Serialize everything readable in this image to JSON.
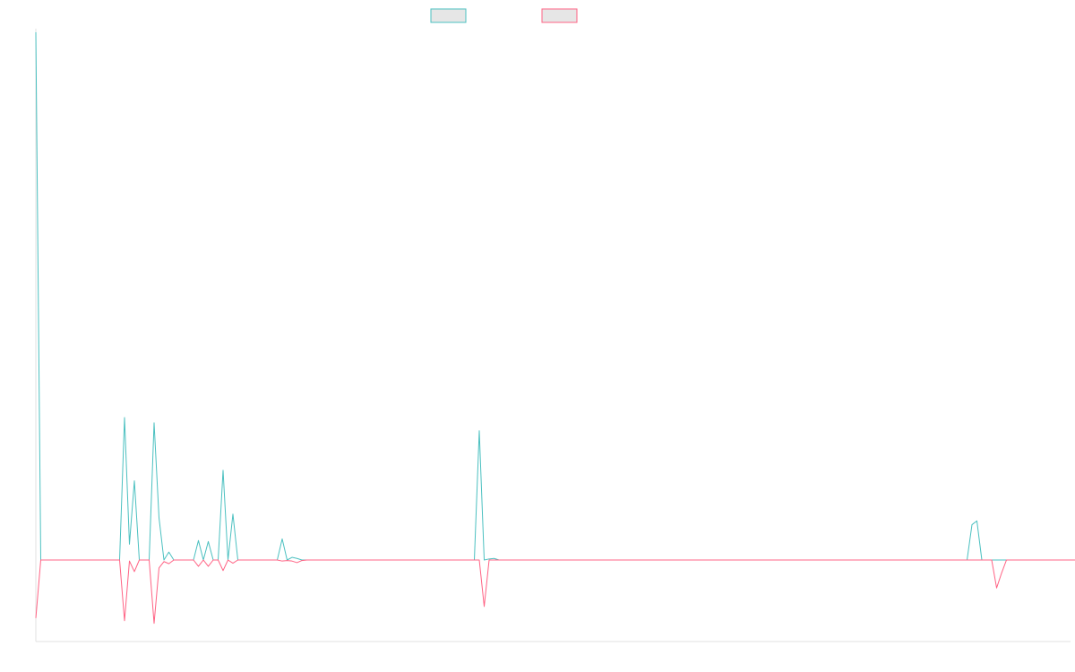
{
  "chart_data": {
    "type": "line",
    "title": "",
    "xlabel": "",
    "ylabel": "",
    "grid": false,
    "legend": {
      "placement": "top-center"
    },
    "ylim": [
      -12,
      100
    ],
    "series": [
      {
        "name": "",
        "color": "#4bc0c0",
        "legend_fill": "#e6e6e6",
        "values": [
          100,
          0,
          0,
          0,
          0,
          0,
          0,
          0,
          0,
          0,
          0,
          0,
          0,
          0,
          0,
          0,
          0,
          0,
          27,
          3,
          15,
          0,
          0,
          0,
          26,
          8,
          0,
          1.5,
          0,
          0,
          0,
          0,
          0,
          3.7,
          0,
          3.5,
          0,
          0,
          17,
          0,
          8.7,
          0,
          0,
          0,
          0,
          0,
          0,
          0,
          0,
          0,
          4,
          0,
          0.5,
          0.3,
          0,
          0,
          0,
          0,
          0,
          0,
          0,
          0,
          0,
          0,
          0,
          0,
          0,
          0,
          0,
          0,
          0,
          0,
          0,
          0,
          0,
          0,
          0,
          0,
          0,
          0,
          0,
          0,
          0,
          0,
          0,
          0,
          0,
          0,
          0,
          0,
          24.5,
          0,
          0.2,
          0.3,
          0,
          0,
          0,
          0,
          0,
          0,
          0,
          0,
          0,
          0,
          0,
          0,
          0,
          0,
          0,
          0,
          0,
          0,
          0,
          0,
          0,
          0,
          0,
          0,
          0,
          0,
          0,
          0,
          0,
          0,
          0,
          0,
          0,
          0,
          0,
          0,
          0,
          0,
          0,
          0,
          0,
          0,
          0,
          0,
          0,
          0,
          0,
          0,
          0,
          0,
          0,
          0,
          0,
          0,
          0,
          0,
          0,
          0,
          0,
          0,
          0,
          0,
          0,
          0,
          0,
          0,
          0,
          0,
          0,
          0,
          0,
          0,
          0,
          0,
          0,
          0,
          0,
          0,
          0,
          0,
          0,
          0,
          0,
          0,
          0,
          0,
          0,
          0,
          0,
          0,
          0,
          0,
          0,
          0,
          0,
          0,
          6.7,
          7.4,
          0,
          0,
          0,
          0,
          0,
          0,
          0,
          0,
          0,
          0,
          0,
          0,
          0,
          0,
          0,
          0,
          0,
          0,
          0
        ]
      },
      {
        "name": "",
        "color": "#ff6384",
        "legend_fill": "#e6e6e6",
        "values": [
          -11,
          0,
          0,
          0,
          0,
          0,
          0,
          0,
          0,
          0,
          0,
          0,
          0,
          0,
          0,
          0,
          0,
          0,
          -11.5,
          -0.2,
          -2.2,
          0,
          0,
          0,
          -12,
          -1.5,
          -0.3,
          -0.7,
          0,
          0,
          0,
          0,
          0,
          -1.2,
          0,
          -1.2,
          0,
          0,
          -2,
          0,
          -0.6,
          0,
          0,
          0,
          0,
          0,
          0,
          0,
          0,
          0,
          -0.2,
          -0.1,
          -0.2,
          -0.5,
          -0.1,
          0,
          0,
          0,
          0,
          0,
          0,
          0,
          0,
          0,
          0,
          0,
          0,
          0,
          0,
          0,
          0,
          0,
          0,
          0,
          0,
          0,
          0,
          0,
          0,
          0,
          0,
          0,
          0,
          0,
          0,
          0,
          0,
          0,
          0,
          0,
          0,
          -8.8,
          0,
          0,
          0,
          0,
          0,
          0,
          0,
          0,
          0,
          0,
          0,
          0,
          0,
          0,
          0,
          0,
          0,
          0,
          0,
          0,
          0,
          0,
          0,
          0,
          0,
          0,
          0,
          0,
          0,
          0,
          0,
          0,
          0,
          0,
          0,
          0,
          0,
          0,
          0,
          0,
          0,
          0,
          0,
          0,
          0,
          0,
          0,
          0,
          0,
          0,
          0,
          0,
          0,
          0,
          0,
          0,
          0,
          0,
          0,
          0,
          0,
          0,
          0,
          0,
          0,
          0,
          0,
          0,
          0,
          0,
          0,
          0,
          0,
          0,
          0,
          0,
          0,
          0,
          0,
          0,
          0,
          0,
          0,
          0,
          0,
          0,
          0,
          0,
          0,
          0,
          0,
          0,
          0,
          0,
          0,
          0,
          0,
          0,
          0,
          0,
          0,
          0,
          0,
          -5.3,
          -2.5,
          0,
          0,
          0,
          0,
          0,
          0,
          0,
          0,
          0,
          0,
          0,
          0,
          0,
          0,
          0,
          0,
          0,
          0,
          0
        ]
      }
    ]
  }
}
